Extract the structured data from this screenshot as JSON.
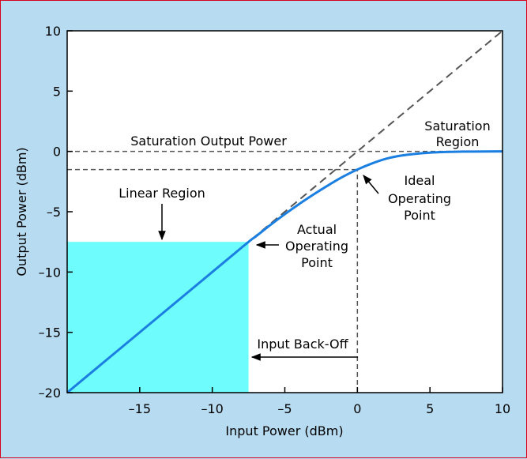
{
  "chart_data": {
    "type": "line",
    "xlabel": "Input Power (dBm)",
    "ylabel": "Output Power (dBm)",
    "xlim": [
      -20,
      10
    ],
    "ylim": [
      -20,
      10
    ],
    "x_ticks": [
      -15,
      -10,
      -5,
      0,
      5,
      10
    ],
    "y_ticks": [
      -20,
      -15,
      -10,
      -5,
      0,
      5,
      10
    ],
    "x_tick_labels": [
      "–15",
      "–10",
      "–5",
      "0",
      "5",
      "10"
    ],
    "y_tick_labels": [
      "–20",
      "–15",
      "–10",
      "–5",
      "0",
      "5",
      "10"
    ],
    "grid": false,
    "series": [
      {
        "style": "solid",
        "color": "#1a7fe0",
        "points": [
          [
            -20,
            -20
          ],
          [
            -10,
            -10
          ],
          [
            -7.5,
            -7.5
          ],
          [
            -7,
            -7.05
          ],
          [
            -6,
            -6.1
          ],
          [
            -5,
            -5.2
          ],
          [
            -4,
            -4.35
          ],
          [
            -3,
            -3.55
          ],
          [
            -2,
            -2.8
          ],
          [
            -1,
            -2.1
          ],
          [
            0,
            -1.5
          ],
          [
            1,
            -1.0
          ],
          [
            2,
            -0.6
          ],
          [
            3,
            -0.35
          ],
          [
            4,
            -0.2
          ],
          [
            5,
            -0.1
          ],
          [
            6,
            -0.05
          ],
          [
            7,
            -0.02
          ],
          [
            8,
            -0.01
          ],
          [
            10,
            0
          ]
        ]
      },
      {
        "style": "dashed",
        "color": "#555555",
        "points": [
          [
            -20,
            -20
          ],
          [
            10,
            10
          ]
        ]
      }
    ],
    "reference_lines": [
      {
        "type": "horizontal",
        "y": 0,
        "style": "dashed"
      },
      {
        "type": "horizontal",
        "y": -1.5,
        "x_range": [
          -20,
          0
        ],
        "style": "dashed"
      },
      {
        "type": "vertical",
        "x": 0,
        "y_range": [
          -20,
          -1.5
        ],
        "style": "dashed"
      }
    ],
    "shaded_region": {
      "x_range": [
        -20,
        -7.5
      ],
      "y_range": [
        -20,
        -7.5
      ],
      "color": "#6ffcfd"
    },
    "annotations": {
      "saturation_output_power": "Saturation Output Power",
      "saturation_region_line1": "Saturation",
      "saturation_region_line2": "Region",
      "linear_region": "Linear Region",
      "ideal_line1": "Ideal",
      "ideal_line2": "Operating",
      "ideal_line3": "Point",
      "actual_line1": "Actual",
      "actual_line2": "Operating",
      "actual_line3": "Point",
      "input_backoff": "Input Back-Off"
    }
  }
}
